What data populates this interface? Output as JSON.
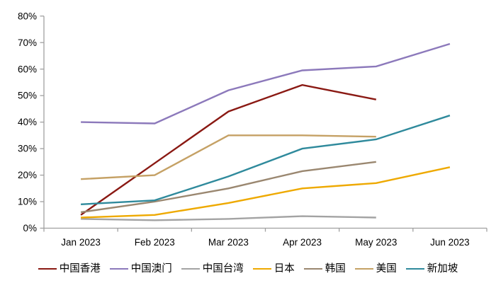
{
  "chart_data": {
    "type": "line",
    "title": "",
    "xlabel": "",
    "ylabel": "",
    "categories": [
      "Jan 2023",
      "Feb 2023",
      "Mar 2023",
      "Apr 2023",
      "May 2023",
      "Jun 2023"
    ],
    "series": [
      {
        "name": "中国香港",
        "color": "#8A1913",
        "values": [
          5,
          24.5,
          44,
          54,
          48.5,
          null
        ]
      },
      {
        "name": "中国澳门",
        "color": "#8C79BB",
        "values": [
          40,
          39.5,
          52,
          59.5,
          61,
          69.5
        ]
      },
      {
        "name": "中国台湾",
        "color": "#A3A3A3",
        "values": [
          3.5,
          3,
          3.5,
          4.5,
          4,
          null
        ]
      },
      {
        "name": "日本",
        "color": "#EEA900",
        "values": [
          4,
          5,
          9.5,
          15,
          17,
          23
        ]
      },
      {
        "name": "韩国",
        "color": "#9A8770",
        "values": [
          6,
          10,
          15,
          21.5,
          25,
          null
        ]
      },
      {
        "name": "美国",
        "color": "#C5A165",
        "values": [
          18.5,
          20,
          35,
          35,
          34.5,
          null
        ]
      },
      {
        "name": "新加坡",
        "color": "#2F8A9C",
        "values": [
          9,
          10.5,
          19.5,
          30,
          33.5,
          42.5
        ]
      }
    ],
    "ylim": [
      0,
      80
    ],
    "ytick_step": 10,
    "ytick_labels": [
      "0%",
      "10%",
      "20%",
      "30%",
      "40%",
      "50%",
      "60%",
      "70%",
      "80%"
    ],
    "grid": false,
    "legend_position": "bottom",
    "axis_color": "#A0A0A0",
    "text_color": "#000000",
    "background": "#FFFFFF"
  }
}
